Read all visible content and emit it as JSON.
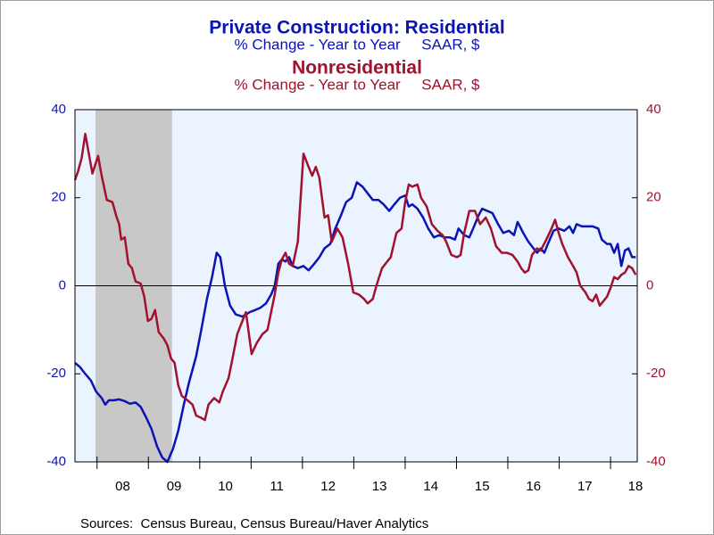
{
  "chart_data": {
    "type": "line",
    "series": [
      {
        "name": "Private Construction: Residential",
        "unit": "% Change - Year to Year     SAAR, $",
        "color": "#0a14b4",
        "axis": "y",
        "x": [
          2007.57,
          2007.67,
          2007.77,
          2007.88,
          2007.98,
          2008.09,
          2008.16,
          2008.23,
          2008.33,
          2008.43,
          2008.54,
          2008.64,
          2008.75,
          2008.85,
          2008.96,
          2009.06,
          2009.17,
          2009.27,
          2009.37,
          2009.48,
          2009.58,
          2009.69,
          2009.79,
          2009.93,
          2010.03,
          2010.14,
          2010.24,
          2010.33,
          2010.4,
          2010.49,
          2010.59,
          2010.7,
          2010.83,
          2010.97,
          2011.08,
          2011.18,
          2011.29,
          2011.39,
          2011.46,
          2011.53,
          2011.6,
          2011.67,
          2011.74,
          2011.81,
          2011.91,
          2012.02,
          2012.12,
          2012.23,
          2012.33,
          2012.43,
          2012.54,
          2012.64,
          2012.75,
          2012.85,
          2012.96,
          2013.06,
          2013.17,
          2013.27,
          2013.37,
          2013.48,
          2013.58,
          2013.69,
          2013.79,
          2013.9,
          2014.0,
          2014.07,
          2014.14,
          2014.24,
          2014.35,
          2014.45,
          2014.56,
          2014.66,
          2014.77,
          2014.87,
          2014.97,
          2015.04,
          2015.15,
          2015.25,
          2015.36,
          2015.43,
          2015.5,
          2015.6,
          2015.7,
          2015.81,
          2015.91,
          2016.02,
          2016.12,
          2016.19,
          2016.3,
          2016.4,
          2016.5,
          2016.57,
          2016.64,
          2016.71,
          2016.78,
          2016.89,
          2016.99,
          2017.1,
          2017.2,
          2017.27,
          2017.34,
          2017.44,
          2017.55,
          2017.65,
          2017.76,
          2017.83,
          2017.93,
          2018.0,
          2018.07,
          2018.14,
          2018.21,
          2018.28,
          2018.35,
          2018.42,
          2018.49
        ],
        "values": [
          -17.5,
          -18.5,
          -20,
          -21.5,
          -24,
          -25.5,
          -27,
          -26,
          -26,
          -25.8,
          -26.2,
          -26.8,
          -26.5,
          -27.5,
          -30,
          -32.5,
          -36.5,
          -39,
          -40,
          -37,
          -33,
          -27,
          -22,
          -16,
          -10,
          -3,
          2,
          7.5,
          6.5,
          0,
          -4.5,
          -6.5,
          -7,
          -6,
          -5.5,
          -5,
          -4,
          -2,
          0,
          5,
          6,
          5.5,
          6.5,
          4.5,
          4,
          4.5,
          3.5,
          5,
          6.5,
          8.5,
          9.5,
          13,
          16,
          19,
          20,
          23.5,
          22.5,
          21,
          19.5,
          19.5,
          18.5,
          17,
          18.5,
          20,
          20.5,
          18,
          18.5,
          17.5,
          15.5,
          13,
          11,
          11.5,
          11,
          11,
          10.5,
          13,
          11.5,
          11,
          14,
          16,
          17.5,
          17,
          16.5,
          14,
          12,
          12.5,
          11.5,
          14.5,
          12,
          10,
          8.5,
          7.5,
          8.5,
          7.5,
          9.5,
          12.5,
          13,
          12.5,
          13.5,
          12,
          14,
          13.5,
          13.5,
          13.5,
          13,
          10.5,
          9.5,
          9.5,
          7.5,
          9.5,
          4.5,
          8,
          8.5,
          6.5,
          6.5
        ]
      },
      {
        "name": "Nonresidential",
        "unit": "% Change - Year to Year     SAAR, $",
        "color": "#a0122d",
        "axis": "y2",
        "x": [
          2007.57,
          2007.63,
          2007.7,
          2007.77,
          2007.84,
          2007.91,
          2008.02,
          2008.09,
          2008.19,
          2008.3,
          2008.37,
          2008.43,
          2008.47,
          2008.54,
          2008.61,
          2008.68,
          2008.75,
          2008.85,
          2008.92,
          2008.99,
          2009.06,
          2009.13,
          2009.2,
          2009.3,
          2009.37,
          2009.44,
          2009.51,
          2009.58,
          2009.65,
          2009.76,
          2009.86,
          2009.93,
          2010.03,
          2010.1,
          2010.17,
          2010.28,
          2010.38,
          2010.45,
          2010.56,
          2010.63,
          2010.73,
          2010.83,
          2010.9,
          2011.01,
          2011.11,
          2011.22,
          2011.32,
          2011.39,
          2011.46,
          2011.53,
          2011.6,
          2011.67,
          2011.74,
          2011.81,
          2011.91,
          2012.02,
          2012.12,
          2012.19,
          2012.26,
          2012.33,
          2012.43,
          2012.5,
          2012.57,
          2012.68,
          2012.78,
          2012.89,
          2012.99,
          2013.1,
          2013.2,
          2013.27,
          2013.37,
          2013.44,
          2013.55,
          2013.65,
          2013.72,
          2013.83,
          2013.93,
          2014.0,
          2014.07,
          2014.14,
          2014.24,
          2014.31,
          2014.42,
          2014.52,
          2014.63,
          2014.73,
          2014.8,
          2014.9,
          2015.01,
          2015.08,
          2015.15,
          2015.25,
          2015.36,
          2015.46,
          2015.57,
          2015.67,
          2015.77,
          2015.88,
          2015.98,
          2016.09,
          2016.19,
          2016.26,
          2016.33,
          2016.4,
          2016.47,
          2016.57,
          2016.64,
          2016.75,
          2016.85,
          2016.92,
          2016.99,
          2017.06,
          2017.17,
          2017.27,
          2017.34,
          2017.41,
          2017.51,
          2017.58,
          2017.65,
          2017.72,
          2017.79,
          2017.86,
          2017.93,
          2018.0,
          2018.07,
          2018.14,
          2018.21,
          2018.28,
          2018.35,
          2018.42,
          2018.49
        ],
        "values": [
          24,
          26,
          29,
          34.5,
          30,
          25.5,
          29.5,
          25,
          19.5,
          19,
          16,
          14,
          10.5,
          11,
          5,
          4,
          1,
          0.5,
          -2.5,
          -8,
          -7.5,
          -5.5,
          -10.5,
          -12,
          -13.5,
          -16.5,
          -17.5,
          -22.5,
          -25,
          -26,
          -27,
          -29.5,
          -30,
          -30.5,
          -27,
          -25.5,
          -26.5,
          -24,
          -21,
          -17,
          -11,
          -8,
          -6,
          -15.5,
          -13,
          -11,
          -10,
          -6,
          -2,
          3,
          6,
          7.5,
          5,
          4.5,
          10,
          30,
          27,
          25,
          27,
          24.5,
          15.5,
          16,
          10,
          13,
          11,
          5,
          -1.5,
          -2,
          -3,
          -4,
          -3,
          0,
          4,
          5.5,
          6.5,
          12,
          13,
          19,
          23,
          22.5,
          23,
          20,
          18,
          14,
          12.5,
          11.5,
          10,
          7,
          6.5,
          7,
          12,
          17,
          17,
          14,
          15.5,
          13,
          9,
          7.5,
          7.5,
          7,
          5.5,
          4,
          3,
          3.5,
          7,
          8.5,
          8,
          10.5,
          13,
          15,
          12,
          9.5,
          6.5,
          4.5,
          3,
          0,
          -1.5,
          -3,
          -3.5,
          -2,
          -4.5,
          -3.5,
          -2.5,
          -0.5,
          2,
          1.5,
          2.5,
          3,
          4.5,
          4,
          2.5
        ]
      }
    ],
    "shaded_regions": [
      [
        2007.97,
        2009.46
      ]
    ],
    "xlim": [
      2007.57,
      2018.52
    ],
    "xticks": [
      {
        "value": 2008,
        "label": "08"
      },
      {
        "value": 2009,
        "label": "09"
      },
      {
        "value": 2010,
        "label": "10"
      },
      {
        "value": 2011,
        "label": "11"
      },
      {
        "value": 2012,
        "label": "12"
      },
      {
        "value": 2013,
        "label": "13"
      },
      {
        "value": 2014,
        "label": "14"
      },
      {
        "value": 2015,
        "label": "15"
      },
      {
        "value": 2016,
        "label": "16"
      },
      {
        "value": 2017,
        "label": "17"
      },
      {
        "value": 2018,
        "label": "18"
      }
    ],
    "ylim": [
      -40,
      40
    ],
    "yticks": [
      -40,
      -20,
      0,
      20,
      40
    ],
    "y2lim": [
      -40,
      40
    ],
    "y2ticks": [
      -40,
      -20,
      0,
      20,
      40
    ],
    "source": "Sources:  Census Bureau, Census Bureau/Haver Analytics"
  }
}
